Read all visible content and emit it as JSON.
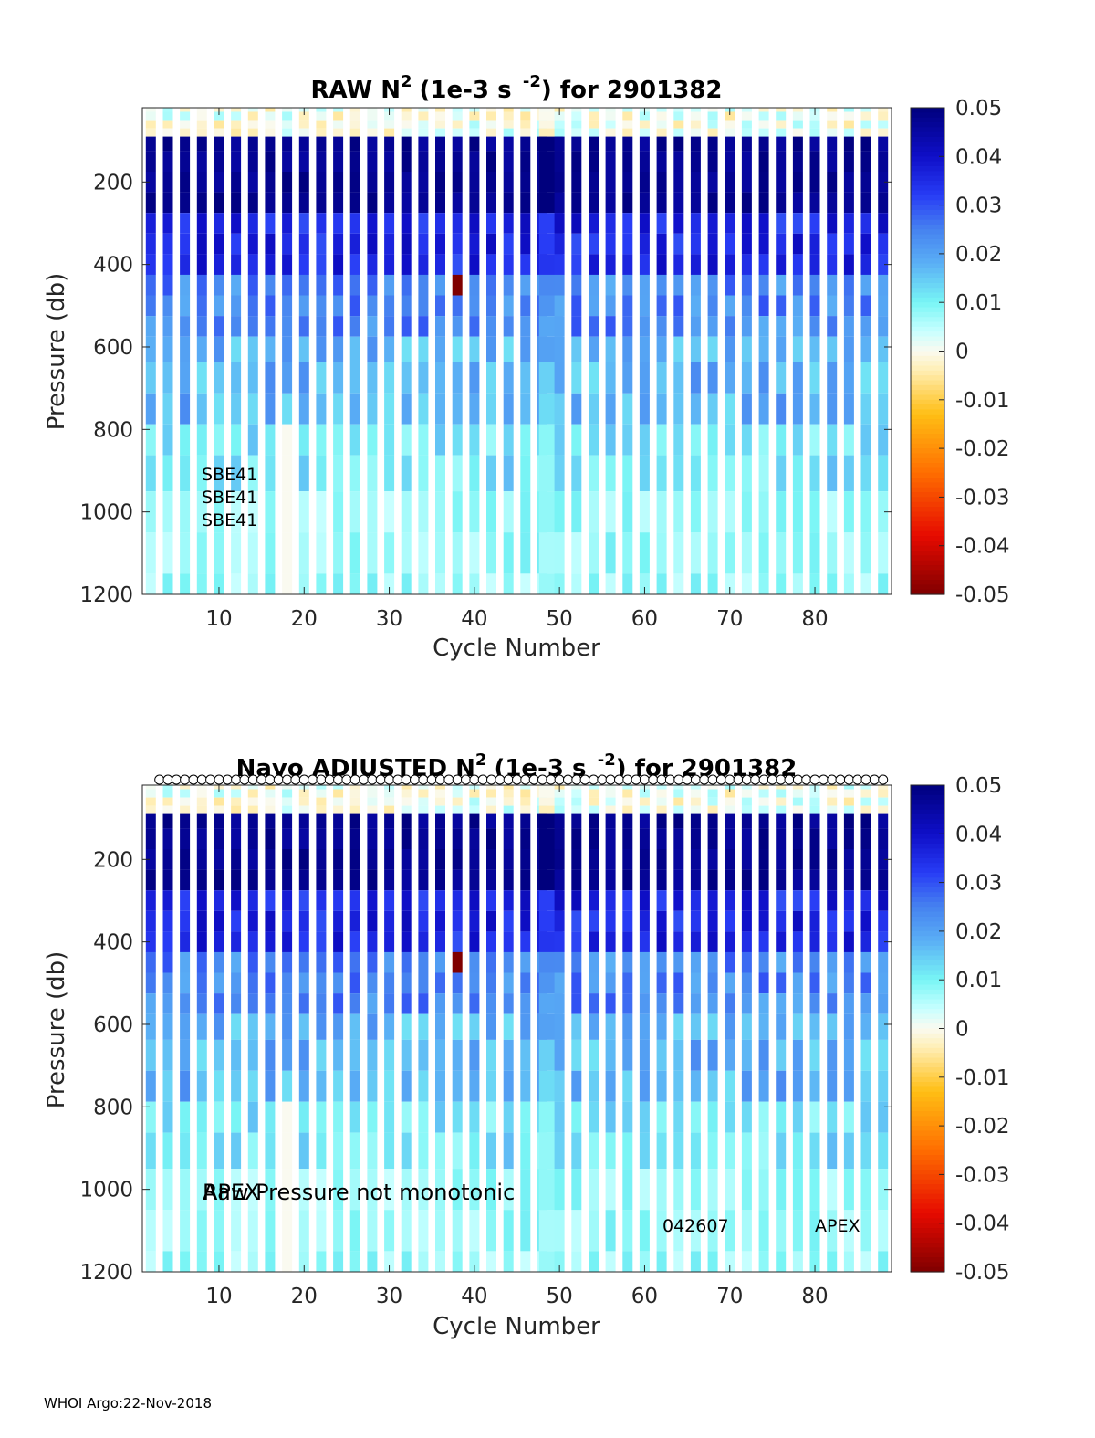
{
  "chart_data": [
    {
      "type": "heatmap",
      "title_prefix": "RAW N",
      "title_units": "(1e-3 s",
      "title_suffix": ") for 2901382",
      "xlabel": "Cycle Number",
      "ylabel": "Pressure (db)",
      "xlim": [
        1,
        89
      ],
      "ylim": [
        20,
        1200
      ],
      "xticks": [
        "10",
        "20",
        "30",
        "40",
        "50",
        "60",
        "70",
        "80"
      ],
      "yticks": [
        "200",
        "400",
        "600",
        "800",
        "1000",
        "1200"
      ],
      "colorbar": {
        "min": -0.05,
        "max": 0.05,
        "ticks": [
          "0.05",
          "0.04",
          "0.03",
          "0.02",
          "0.01",
          "0",
          "-0.01",
          "-0.02",
          "-0.03",
          "-0.04",
          "-0.05"
        ]
      },
      "annotations": [
        "SBE41",
        "SBE41",
        "SBE41"
      ],
      "cycles": [
        2,
        4,
        6,
        8,
        10,
        12,
        14,
        16,
        18,
        20,
        22,
        24,
        26,
        28,
        30,
        32,
        34,
        36,
        38,
        40,
        42,
        44,
        46,
        48,
        49,
        50,
        52,
        54,
        56,
        58,
        60,
        62,
        64,
        66,
        68,
        70,
        72,
        74,
        76,
        78,
        80,
        82,
        84,
        86,
        88
      ],
      "profile_depths_db": [
        20,
        40,
        60,
        80,
        100,
        150,
        200,
        250,
        300,
        350,
        400,
        450,
        500,
        550,
        600,
        675,
        750,
        825,
        900,
        1000,
        1100,
        1200
      ],
      "value_note": "N2 values in 1e-3 s^-2; ~0.045 strongly stratified above 300 db decreasing to ~0.005 near 1200 db"
    },
    {
      "type": "heatmap",
      "title_prefix": "Navo  ADJUSTED N",
      "title_units": "(1e-3 s",
      "title_suffix": ") for 2901382",
      "xlabel": "Cycle Number",
      "ylabel": "Pressure (db)",
      "xlim": [
        1,
        89
      ],
      "ylim": [
        20,
        1200
      ],
      "xticks": [
        "10",
        "20",
        "30",
        "40",
        "50",
        "60",
        "70",
        "80"
      ],
      "yticks": [
        "200",
        "400",
        "600",
        "800",
        "1000",
        "1200"
      ],
      "colorbar": {
        "min": -0.05,
        "max": 0.05,
        "ticks": [
          "0.05",
          "0.04",
          "0.03",
          "0.02",
          "0.01",
          "0",
          "-0.01",
          "-0.02",
          "-0.03",
          "-0.04",
          "-0.05"
        ]
      },
      "annotations": [
        "APEX",
        "Raw Pressure not monotonic",
        "042607",
        "APEX"
      ],
      "top_markers": "open circles at every cycle along the top edge"
    }
  ],
  "superscripts": {
    "n": "2",
    "s": "-2"
  },
  "footer": "WHOI Argo:22-Nov-2018"
}
